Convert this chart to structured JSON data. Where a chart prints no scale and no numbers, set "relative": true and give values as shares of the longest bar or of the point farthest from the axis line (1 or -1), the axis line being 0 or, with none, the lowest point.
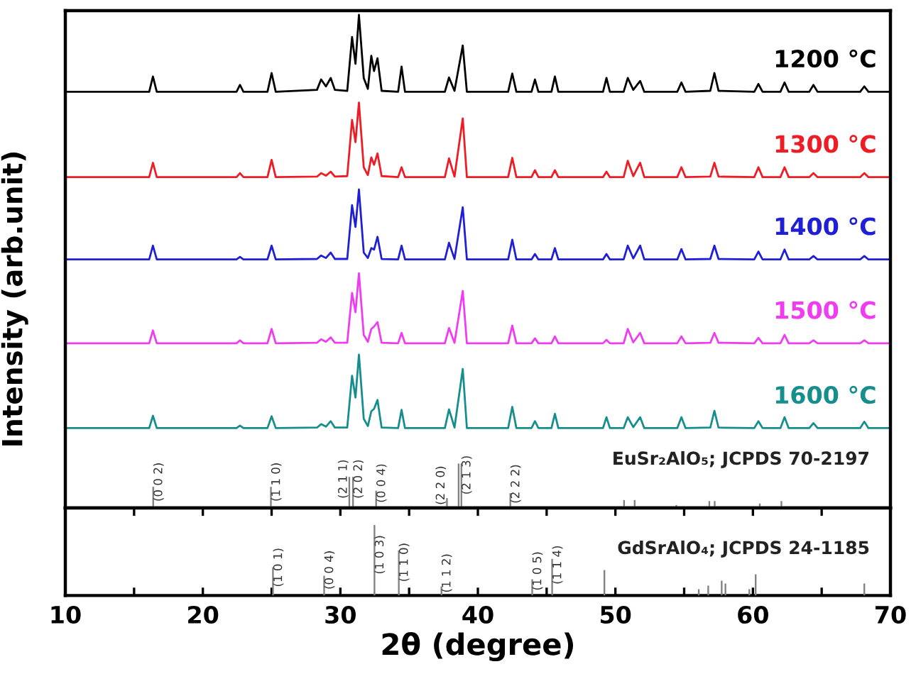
{
  "chart_data": [
    {
      "type": "line",
      "relative": true,
      "ylabel": "Intensity (arb.unit)",
      "xlim": [
        10,
        70
      ],
      "tick_labels": false,
      "xticks": [
        10,
        {
          "value": 15,
          "label": null
        },
        20,
        {
          "value": 25,
          "label": null
        },
        30,
        {
          "value": 35,
          "label": null
        },
        40,
        {
          "value": 45,
          "label": null
        },
        50,
        {
          "value": 55,
          "label": null
        },
        60,
        {
          "value": 65,
          "label": null
        },
        70
      ],
      "x": [
        10,
        16.1,
        16.37,
        16.65,
        22.45,
        22.7,
        22.95,
        24.7,
        25.0,
        25.3,
        28.3,
        28.6,
        28.95,
        29.3,
        29.6,
        30.5,
        30.85,
        31.1,
        31.35,
        31.7,
        32.0,
        32.25,
        32.45,
        32.7,
        33.0,
        34.2,
        34.45,
        34.7,
        37.6,
        37.9,
        38.3,
        38.9,
        39.2,
        42.2,
        42.5,
        42.8,
        43.9,
        44.15,
        44.4,
        45.35,
        45.6,
        45.85,
        49.1,
        49.35,
        49.6,
        50.6,
        50.9,
        51.3,
        51.8,
        52.1,
        54.5,
        54.8,
        55.1,
        56.9,
        57.2,
        57.5,
        60.1,
        60.4,
        60.7,
        62.0,
        62.3,
        62.6,
        64.1,
        64.4,
        64.7,
        67.8,
        68.1,
        68.4,
        70
      ],
      "series": [
        {
          "name": "1200 °C",
          "type": "line",
          "color": "#000000",
          "values": [
            0.844,
            0.844,
            0.875,
            0.844,
            0.844,
            0.858,
            0.844,
            0.844,
            0.882,
            0.844,
            0.848,
            0.869,
            0.855,
            0.872,
            0.848,
            0.846,
            0.955,
            0.901,
            1.0,
            0.872,
            0.85,
            0.917,
            0.886,
            0.912,
            0.846,
            0.844,
            0.895,
            0.844,
            0.844,
            0.873,
            0.846,
            0.938,
            0.844,
            0.844,
            0.881,
            0.844,
            0.844,
            0.869,
            0.844,
            0.844,
            0.875,
            0.844,
            0.844,
            0.872,
            0.844,
            0.844,
            0.872,
            0.848,
            0.866,
            0.844,
            0.844,
            0.863,
            0.844,
            0.846,
            0.882,
            0.846,
            0.844,
            0.86,
            0.844,
            0.844,
            0.863,
            0.844,
            0.844,
            0.858,
            0.844,
            0.844,
            0.855,
            0.844,
            0.844
          ]
        },
        {
          "name": "1300 °C",
          "type": "line",
          "color": "#ee1c24",
          "values": [
            0.671,
            0.671,
            0.7,
            0.671,
            0.671,
            0.679,
            0.671,
            0.671,
            0.706,
            0.671,
            0.672,
            0.679,
            0.674,
            0.682,
            0.672,
            0.673,
            0.787,
            0.742,
            0.822,
            0.691,
            0.675,
            0.711,
            0.696,
            0.719,
            0.673,
            0.671,
            0.691,
            0.671,
            0.671,
            0.709,
            0.672,
            0.79,
            0.671,
            0.671,
            0.71,
            0.671,
            0.671,
            0.685,
            0.671,
            0.671,
            0.685,
            0.671,
            0.671,
            0.682,
            0.671,
            0.671,
            0.704,
            0.673,
            0.7,
            0.671,
            0.671,
            0.691,
            0.671,
            0.672,
            0.7,
            0.672,
            0.671,
            0.691,
            0.671,
            0.671,
            0.691,
            0.671,
            0.671,
            0.679,
            0.671,
            0.671,
            0.679,
            0.671,
            0.671
          ]
        },
        {
          "name": "1400 °C",
          "type": "line",
          "color": "#1f1fd6",
          "values": [
            0.504,
            0.504,
            0.532,
            0.504,
            0.504,
            0.509,
            0.504,
            0.504,
            0.532,
            0.504,
            0.505,
            0.512,
            0.507,
            0.518,
            0.505,
            0.505,
            0.614,
            0.57,
            0.646,
            0.518,
            0.507,
            0.527,
            0.524,
            0.55,
            0.505,
            0.504,
            0.532,
            0.504,
            0.504,
            0.538,
            0.505,
            0.61,
            0.504,
            0.504,
            0.544,
            0.504,
            0.504,
            0.515,
            0.504,
            0.504,
            0.527,
            0.504,
            0.504,
            0.515,
            0.504,
            0.504,
            0.532,
            0.506,
            0.532,
            0.504,
            0.504,
            0.525,
            0.504,
            0.505,
            0.532,
            0.505,
            0.504,
            0.52,
            0.504,
            0.504,
            0.524,
            0.504,
            0.504,
            0.511,
            0.504,
            0.504,
            0.511,
            0.504,
            0.504
          ]
        },
        {
          "name": "1500 °C",
          "type": "line",
          "color": "#f03cf0",
          "values": [
            0.334,
            0.334,
            0.36,
            0.334,
            0.334,
            0.34,
            0.334,
            0.334,
            0.363,
            0.334,
            0.335,
            0.342,
            0.337,
            0.346,
            0.335,
            0.335,
            0.436,
            0.397,
            0.476,
            0.351,
            0.337,
            0.363,
            0.368,
            0.377,
            0.335,
            0.334,
            0.355,
            0.334,
            0.334,
            0.365,
            0.335,
            0.44,
            0.334,
            0.334,
            0.37,
            0.334,
            0.334,
            0.344,
            0.334,
            0.334,
            0.348,
            0.334,
            0.334,
            0.341,
            0.334,
            0.334,
            0.363,
            0.336,
            0.355,
            0.334,
            0.334,
            0.348,
            0.334,
            0.335,
            0.355,
            0.335,
            0.334,
            0.345,
            0.334,
            0.334,
            0.351,
            0.334,
            0.334,
            0.34,
            0.334,
            0.334,
            0.34,
            0.334,
            0.334
          ]
        },
        {
          "name": "1600 °C",
          "type": "line",
          "color": "#178e8e",
          "values": [
            0.162,
            0.162,
            0.187,
            0.162,
            0.162,
            0.167,
            0.162,
            0.162,
            0.186,
            0.162,
            0.163,
            0.17,
            0.165,
            0.176,
            0.163,
            0.163,
            0.268,
            0.224,
            0.311,
            0.181,
            0.166,
            0.196,
            0.201,
            0.219,
            0.163,
            0.162,
            0.199,
            0.162,
            0.162,
            0.2,
            0.163,
            0.282,
            0.162,
            0.162,
            0.205,
            0.162,
            0.162,
            0.176,
            0.162,
            0.162,
            0.191,
            0.162,
            0.162,
            0.184,
            0.162,
            0.162,
            0.184,
            0.164,
            0.184,
            0.162,
            0.162,
            0.184,
            0.162,
            0.163,
            0.197,
            0.163,
            0.162,
            0.176,
            0.162,
            0.162,
            0.184,
            0.162,
            0.162,
            0.172,
            0.162,
            0.162,
            0.175,
            0.162,
            0.162
          ]
        },
        {
          "type": "bar",
          "color": "#808080",
          "x": [
            16.39,
            24.95,
            30.65,
            30.92,
            32.6,
            37.75,
            38.6,
            38.8,
            42.36,
            50.63,
            51.4,
            54.43,
            56.83,
            57.22,
            60.5,
            62.07
          ],
          "values": [
            0.043,
            0.043,
            0.063,
            0.063,
            0.035,
            0.02,
            0.09,
            0.09,
            0.03,
            0.016,
            0.016,
            0.006,
            0.014,
            0.014,
            0.009,
            0.014
          ]
        }
      ],
      "annotations": [
        {
          "text": "(0 0 2)",
          "x": 16.39,
          "y": 0.043
        },
        {
          "text": "(1 1 0)",
          "x": 24.95,
          "y": 0.043
        },
        {
          "text": "(2 1 1)",
          "x": 30.65,
          "y": 0.063
        },
        {
          "text": "(2 0 2)",
          "x": 30.92,
          "y": 0.063
        },
        {
          "text": "(0 0 4)",
          "x": 32.6,
          "y": 0.035
        },
        {
          "text": "(2 2 0)",
          "x": 37.75,
          "y": 0.02
        },
        {
          "text": "(2 1 3)",
          "x": 38.8,
          "y": 0.09
        },
        {
          "text": "(2 2 2)",
          "x": 42.36,
          "y": 0.03
        },
        "EuSr₂AlO₅; JCPDS 70-2197"
      ]
    },
    {
      "type": "bar",
      "relative": true,
      "xlabel": "2θ (degree)",
      "xlim": [
        10,
        70
      ],
      "tick_labels": "x",
      "color": "#808080",
      "xticks": [
        10,
        {
          "value": 15,
          "label": null
        },
        20,
        {
          "value": 25,
          "label": null
        },
        30,
        {
          "value": 35,
          "label": null
        },
        40,
        {
          "value": 45,
          "label": null
        },
        50,
        {
          "value": 55,
          "label": null
        },
        60,
        {
          "value": 65,
          "label": null
        },
        70
      ],
      "x": [
        25.1,
        28.82,
        32.48,
        34.25,
        37.35,
        43.95,
        45.4,
        49.2,
        56.06,
        56.75,
        57.73,
        58.0,
        59.74,
        60.2,
        68.1
      ],
      "values": [
        0.4,
        0.28,
        1.0,
        0.64,
        0.13,
        0.23,
        0.52,
        0.36,
        0.09,
        0.14,
        0.21,
        0.17,
        0.09,
        0.3,
        0.17
      ],
      "annotations": [
        {
          "text": "(1 0 1)",
          "x": 25.1,
          "y": 0.4
        },
        {
          "text": "(0 0 4)",
          "x": 28.82,
          "y": 0.28
        },
        {
          "text": "(1 0 3)",
          "x": 32.48,
          "y": 1.0
        },
        {
          "text": "(1 1 0)",
          "x": 34.25,
          "y": 0.64
        },
        {
          "text": "(1 1 2)",
          "x": 37.35,
          "y": 0.13
        },
        {
          "text": "(1 0 5)",
          "x": 43.95,
          "y": 0.23
        },
        {
          "text": "(1 1 4)",
          "x": 45.4,
          "y": 0.52
        },
        "GdSrAlO₄; JCPDS 24-1185"
      ]
    }
  ]
}
